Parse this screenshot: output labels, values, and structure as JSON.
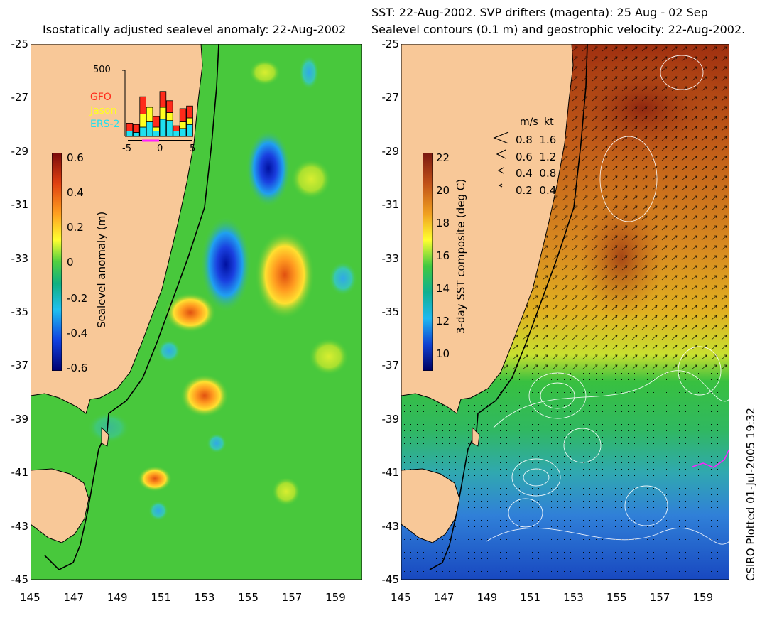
{
  "left_panel": {
    "title": "Isostatically adjusted sealevel anomaly: 22-Aug-2002",
    "colorbar": {
      "label": "Sealevel anomaly (m)",
      "ticks": [
        "0.6",
        "0.4",
        "0.2",
        "0",
        "-0.2",
        "-0.4",
        "-0.6"
      ]
    },
    "inset": {
      "ymax_label": "500",
      "legend": [
        {
          "name": "GFO",
          "color": "#ff2a1a"
        },
        {
          "name": "Jason",
          "color": "#ffff20"
        },
        {
          "name": "ERS-2",
          "color": "#20e0f0"
        }
      ],
      "xticks": [
        "-5",
        "0",
        "5"
      ],
      "bars": [
        {
          "day": -5,
          "ers2": 40,
          "jason": 0,
          "gfo": 60
        },
        {
          "day": -4,
          "ers2": 30,
          "jason": 0,
          "gfo": 60
        },
        {
          "day": -3,
          "ers2": 70,
          "jason": 100,
          "gfo": 130
        },
        {
          "day": -2,
          "ers2": 110,
          "jason": 110,
          "gfo": 0
        },
        {
          "day": -1,
          "ers2": 40,
          "jason": 30,
          "gfo": 80
        },
        {
          "day": 0,
          "ers2": 130,
          "jason": 90,
          "gfo": 120
        },
        {
          "day": 1,
          "ers2": 120,
          "jason": 60,
          "gfo": 90
        },
        {
          "day": 2,
          "ers2": 40,
          "jason": 0,
          "gfo": 40
        },
        {
          "day": 3,
          "ers2": 60,
          "jason": 50,
          "gfo": 100
        },
        {
          "day": 4,
          "ers2": 90,
          "jason": 50,
          "gfo": 90
        }
      ]
    }
  },
  "right_panel": {
    "title_line1": "SST: 22-Aug-2002. SVP drifters (magenta): 25 Aug - 02 Sep",
    "title_line2": "Sealevel contours (0.1 m) and geostrophic velocity: 22-Aug-2002.",
    "colorbar": {
      "label": "3-day SST composite (deg C)",
      "ticks": [
        "22",
        "20",
        "18",
        "16",
        "14",
        "12",
        "10"
      ]
    },
    "velocity_legend": {
      "header_ms": "m/s",
      "header_kt": "kt",
      "rows": [
        {
          "ms": "0.8",
          "kt": "1.6"
        },
        {
          "ms": "0.6",
          "kt": "1.2"
        },
        {
          "ms": "0.4",
          "kt": "0.8"
        },
        {
          "ms": "0.2",
          "kt": "0.4"
        }
      ]
    }
  },
  "axes": {
    "y_ticks": [
      "-25",
      "-27",
      "-29",
      "-31",
      "-33",
      "-35",
      "-37",
      "-39",
      "-41",
      "-43",
      "-45"
    ],
    "x_ticks": [
      "145",
      "147",
      "149",
      "151",
      "153",
      "155",
      "157",
      "159"
    ]
  },
  "credit": "CSIRO Plotted 01-Jul-2005 19:32",
  "colors": {
    "land": "#f8c898",
    "ocean_field_green": "#4ccc3a",
    "sst_warm": "#b04010",
    "sst_cold": "#1858c8"
  }
}
